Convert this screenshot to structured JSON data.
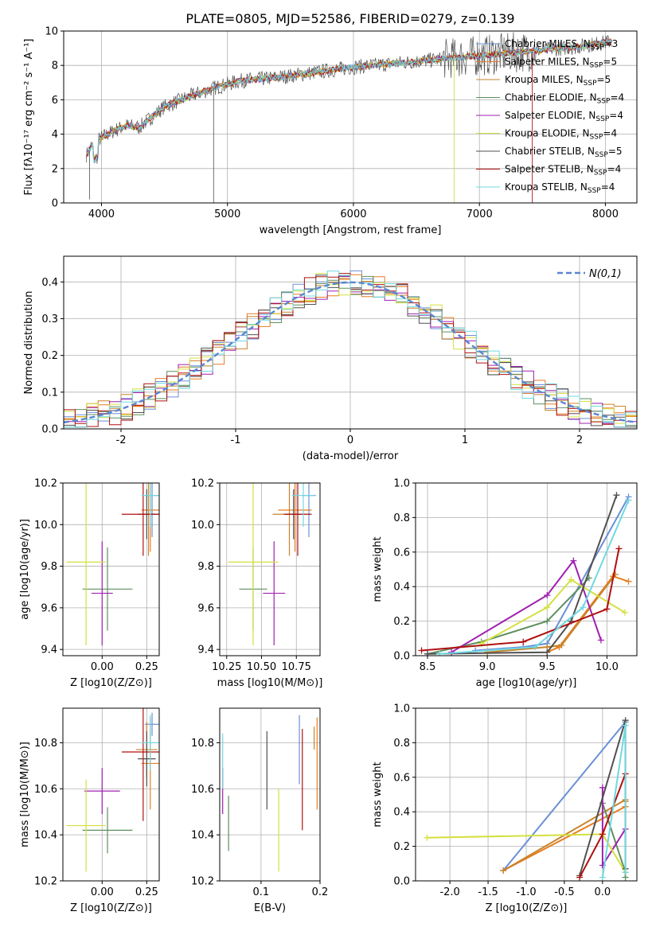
{
  "title": "PLATE=0805, MJD=52586, FIBERID=0279, z=0.139",
  "colors": [
    "#6a8fd8",
    "#e67e22",
    "#c8832a",
    "#5f8f5f",
    "#a020b0",
    "#d4e040",
    "#505050",
    "#b01010",
    "#70d8e0"
  ],
  "legend": [
    "Chabrier MILES, N_SSP=3",
    "Salpeter MILES, N_SSP=5",
    "Kroupa MILES, N_SSP=5",
    "Chabrier ELODIE, N_SSP=4",
    "Salpeter ELODIE, N_SSP=4",
    "Kroupa ELODIE, N_SSP=4",
    "Chabrier STELIB, N_SSP=5",
    "Salpeter STELIB, N_SSP=4",
    "Kroupa STELIB, N_SSP=4"
  ],
  "chart_data": [
    {
      "type": "line",
      "xlabel": "wavelength [Angstrom, rest frame]",
      "ylabel": "Flux [fλ10⁻¹⁷ erg cm⁻² s⁻¹ A⁻¹]",
      "xlim": [
        3700,
        8250
      ],
      "ylim": [
        0,
        10
      ],
      "xticks": [
        4000,
        5000,
        6000,
        7000,
        8000
      ],
      "yticks": [
        0,
        2,
        4,
        6,
        8,
        10
      ],
      "continuum": {
        "x": [
          3880,
          3920,
          4000,
          4100,
          4200,
          4300,
          4500,
          4700,
          4900,
          5100,
          5400,
          5700,
          6000,
          6300,
          6600,
          6900,
          7200,
          7500,
          7800,
          8050
        ],
        "y": [
          2.8,
          3.3,
          3.8,
          4.2,
          4.5,
          4.4,
          5.6,
          6.2,
          6.7,
          7.1,
          7.3,
          7.6,
          7.9,
          8.1,
          8.3,
          8.5,
          8.7,
          8.9,
          9.1,
          9.4
        ]
      }
    },
    {
      "type": "step",
      "xlabel": "(data-model)/error",
      "ylabel": "Normed distribution",
      "xlim": [
        -2.5,
        2.5
      ],
      "ylim": [
        0,
        0.47
      ],
      "xticks": [
        -2,
        -1,
        0,
        1,
        2
      ],
      "yticks": [
        0.0,
        0.1,
        0.2,
        0.3,
        0.4
      ],
      "gaussian_label": "N(0,1)"
    },
    {
      "type": "scatter",
      "xlabel": "Z [log10(Z/Z⊙)]",
      "ylabel": "age  [log10(age/yr)]",
      "xlim": [
        -0.22,
        0.32
      ],
      "ylim": [
        9.37,
        10.2
      ],
      "xticks": [
        0.0,
        0.25
      ],
      "yticks": [
        9.4,
        9.6,
        9.8,
        10.0,
        10.2
      ],
      "points": [
        {
          "x": 0.28,
          "y": 10.14,
          "xerr": 0.04,
          "yerr": 0.2
        },
        {
          "x": 0.27,
          "y": 10.07,
          "xerr": 0.05,
          "yerr": 0.2
        },
        {
          "x": 0.26,
          "y": 10.05,
          "xerr": 0.06,
          "yerr": 0.2
        },
        {
          "x": 0.03,
          "y": 9.69,
          "xerr": 0.14,
          "yerr": 0.2
        },
        {
          "x": 0.0,
          "y": 9.67,
          "xerr": 0.06,
          "yerr": 0.25
        },
        {
          "x": -0.09,
          "y": 9.82,
          "xerr": 0.11,
          "yerr": 0.4
        },
        {
          "x": 0.25,
          "y": 10.05,
          "xerr": 0.05,
          "yerr": 0.12
        },
        {
          "x": 0.23,
          "y": 10.05,
          "xerr": 0.12,
          "yerr": 0.2
        },
        {
          "x": 0.27,
          "y": 10.14,
          "xerr": 0.05,
          "yerr": 0.15
        }
      ]
    },
    {
      "type": "scatter",
      "xlabel": "mass [log10(M/M⊙)]",
      "ylabel": "",
      "xlim": [
        10.2,
        10.92
      ],
      "ylim": [
        9.37,
        10.2
      ],
      "xticks": [
        10.25,
        10.5,
        10.75
      ],
      "yticks": [
        9.4,
        9.6,
        9.8,
        10.0,
        10.2
      ],
      "points": [
        {
          "x": 10.84,
          "y": 10.14,
          "xerr": 0.05,
          "yerr": 0.2
        },
        {
          "x": 10.74,
          "y": 10.07,
          "xerr": 0.12,
          "yerr": 0.2
        },
        {
          "x": 10.7,
          "y": 10.05,
          "xerr": 0.12,
          "yerr": 0.2
        },
        {
          "x": 10.44,
          "y": 9.69,
          "xerr": 0.1,
          "yerr": 0.2
        },
        {
          "x": 10.59,
          "y": 9.67,
          "xerr": 0.08,
          "yerr": 0.25
        },
        {
          "x": 10.44,
          "y": 9.82,
          "xerr": 0.18,
          "yerr": 0.4
        },
        {
          "x": 10.73,
          "y": 10.05,
          "xerr": 0.05,
          "yerr": 0.12
        },
        {
          "x": 10.76,
          "y": 10.05,
          "xerr": 0.1,
          "yerr": 0.2
        },
        {
          "x": 10.8,
          "y": 10.14,
          "xerr": 0.08,
          "yerr": 0.15
        }
      ]
    },
    {
      "type": "line",
      "xlabel": "age  [log10(age/yr)]",
      "ylabel": "mass weight",
      "xlim": [
        8.4,
        10.25
      ],
      "ylim": [
        0,
        1
      ],
      "xticks": [
        8.5,
        9.0,
        9.5,
        10.0
      ],
      "yticks": [
        0.0,
        0.2,
        0.4,
        0.6,
        0.8,
        1.0
      ],
      "series": [
        {
          "x": [
            8.9,
            9.3,
            9.5,
            10.18
          ],
          "y": [
            0.03,
            0.05,
            0.07,
            0.92
          ]
        },
        {
          "x": [
            9.5,
            9.6,
            10.05,
            10.18
          ],
          "y": [
            0.02,
            0.05,
            0.46,
            0.43
          ]
        },
        {
          "x": [
            9.0,
            9.5,
            9.62,
            10.07
          ],
          "y": [
            0.02,
            0.05,
            0.06,
            0.47
          ]
        },
        {
          "x": [
            8.5,
            8.95,
            9.5,
            9.85
          ],
          "y": [
            0.01,
            0.08,
            0.2,
            0.45
          ]
        },
        {
          "x": [
            8.7,
            9.5,
            9.72,
            9.95
          ],
          "y": [
            0.02,
            0.35,
            0.55,
            0.09
          ]
        },
        {
          "x": [
            8.95,
            9.5,
            9.7,
            10.15
          ],
          "y": [
            0.07,
            0.28,
            0.44,
            0.25
          ]
        },
        {
          "x": [
            8.5,
            9.5,
            9.7,
            10.08
          ],
          "y": [
            0.01,
            0.02,
            0.2,
            0.93
          ]
        },
        {
          "x": [
            8.45,
            9.3,
            10.0,
            10.1
          ],
          "y": [
            0.03,
            0.08,
            0.27,
            0.62
          ]
        },
        {
          "x": [
            8.6,
            9.4,
            9.8,
            10.18
          ],
          "y": [
            0.01,
            0.05,
            0.28,
            0.9
          ]
        }
      ]
    },
    {
      "type": "scatter",
      "xlabel": "Z [log10(Z/Z⊙)]",
      "ylabel": "mass [log10(M/M⊙)]",
      "xlim": [
        -0.22,
        0.32
      ],
      "ylim": [
        10.2,
        10.95
      ],
      "xticks": [
        0.0,
        0.25
      ],
      "yticks": [
        10.2,
        10.4,
        10.6,
        10.8
      ],
      "points": [
        {
          "x": 0.28,
          "y": 10.88,
          "xerr": 0.04,
          "yerr": 0.05
        },
        {
          "x": 0.27,
          "y": 10.71,
          "xerr": 0.05,
          "yerr": 0.2
        },
        {
          "x": 0.25,
          "y": 10.77,
          "xerr": 0.06,
          "yerr": 0.12
        },
        {
          "x": 0.03,
          "y": 10.42,
          "xerr": 0.14,
          "yerr": 0.1
        },
        {
          "x": 0.0,
          "y": 10.59,
          "xerr": 0.1,
          "yerr": 0.1
        },
        {
          "x": -0.09,
          "y": 10.44,
          "xerr": 0.11,
          "yerr": 0.2
        },
        {
          "x": 0.25,
          "y": 10.73,
          "xerr": 0.05,
          "yerr": 0.12
        },
        {
          "x": 0.23,
          "y": 10.76,
          "xerr": 0.12,
          "yerr": 0.3
        },
        {
          "x": 0.27,
          "y": 10.8,
          "xerr": 0.05,
          "yerr": 0.12
        }
      ]
    },
    {
      "type": "scatter",
      "xlabel": "E(B-V)",
      "ylabel": "",
      "xlim": [
        0.03,
        0.2
      ],
      "ylim": [
        10.2,
        10.95
      ],
      "xticks": [
        0.1,
        0.2
      ],
      "yticks": [
        10.2,
        10.4,
        10.6,
        10.8
      ],
      "points": [
        {
          "x": 0.165,
          "y": 10.77,
          "yerr": 0.15
        },
        {
          "x": 0.195,
          "y": 10.71,
          "yerr": 0.2
        },
        {
          "x": 0.19,
          "y": 10.82,
          "yerr": 0.05
        },
        {
          "x": 0.045,
          "y": 10.45,
          "yerr": 0.12
        },
        {
          "x": 0.035,
          "y": 10.59,
          "yerr": 0.1
        },
        {
          "x": 0.13,
          "y": 10.42,
          "yerr": 0.18
        },
        {
          "x": 0.11,
          "y": 10.68,
          "yerr": 0.17
        },
        {
          "x": 0.17,
          "y": 10.64,
          "yerr": 0.22
        },
        {
          "x": 0.035,
          "y": 10.72,
          "yerr": 0.12
        }
      ]
    },
    {
      "type": "line",
      "xlabel": "Z [log10(Z/Z⊙)]",
      "ylabel": "mass weight",
      "xlim": [
        -2.45,
        0.45
      ],
      "ylim": [
        0,
        1
      ],
      "xticks": [
        -2.0,
        -1.5,
        -1.0,
        -0.5,
        0.0
      ],
      "yticks": [
        0.0,
        0.2,
        0.4,
        0.6,
        0.8,
        1.0
      ],
      "series": [
        {
          "x": [
            -1.3,
            0.3
          ],
          "y": [
            0.06,
            0.92
          ]
        },
        {
          "x": [
            -1.3,
            0.3,
            0.3
          ],
          "y": [
            0.06,
            0.43,
            0.46
          ]
        },
        {
          "x": [
            -1.3,
            0.3
          ],
          "y": [
            0.06,
            0.47
          ]
        },
        {
          "x": [
            0.0,
            0.3,
            0.3
          ],
          "y": [
            0.45,
            0.05,
            0.02
          ]
        },
        {
          "x": [
            0.0,
            0.0,
            0.3
          ],
          "y": [
            0.54,
            0.09,
            0.3
          ]
        },
        {
          "x": [
            -2.3,
            0.0,
            0.3
          ],
          "y": [
            0.25,
            0.27,
            0.05
          ]
        },
        {
          "x": [
            -0.3,
            0.3,
            0.3
          ],
          "y": [
            0.03,
            0.93,
            0.07
          ]
        },
        {
          "x": [
            -0.3,
            0.0,
            0.3
          ],
          "y": [
            0.02,
            0.27,
            0.62
          ]
        },
        {
          "x": [
            0.0,
            0.3,
            0.3
          ],
          "y": [
            0.02,
            0.9,
            0.05
          ]
        }
      ]
    }
  ]
}
